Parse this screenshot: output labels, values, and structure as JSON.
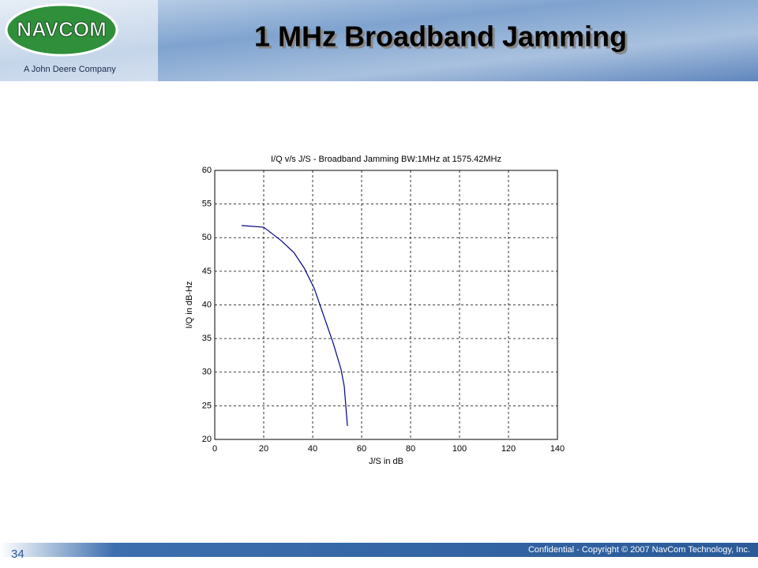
{
  "slide": {
    "title": "1 MHz Broadband Jamming",
    "logo": "NAVCOM",
    "tagline": "A John Deere Company",
    "footer": "Confidential - Copyright © 2007 NavCom Technology, Inc.",
    "page_number": "34"
  },
  "chart_data": {
    "type": "line",
    "title": "I/Q v/s J/S - Broadband Jamming BW:1MHz at 1575.42MHz",
    "x_label": "J/S in dB",
    "y_label": "I/Q in dB-Hz",
    "series": [
      {
        "name": "I/Q",
        "color": "#00008b",
        "x": [
          11,
          20,
          27,
          32.3,
          36.5,
          40.6,
          44.5,
          48.4,
          51.6,
          52.9,
          54.2
        ],
        "values": [
          51.8,
          51.55,
          49.6,
          47.8,
          45.5,
          42.5,
          38.4,
          34.3,
          30.4,
          27.9,
          22
        ]
      }
    ],
    "xlim": [
      0,
      140
    ],
    "xticks": [
      0,
      20,
      40,
      60,
      80,
      100,
      120,
      140
    ],
    "ylim": [
      20,
      60
    ],
    "yticks": [
      20,
      25,
      30,
      35,
      40,
      45,
      50,
      55,
      60
    ],
    "grid": true
  }
}
